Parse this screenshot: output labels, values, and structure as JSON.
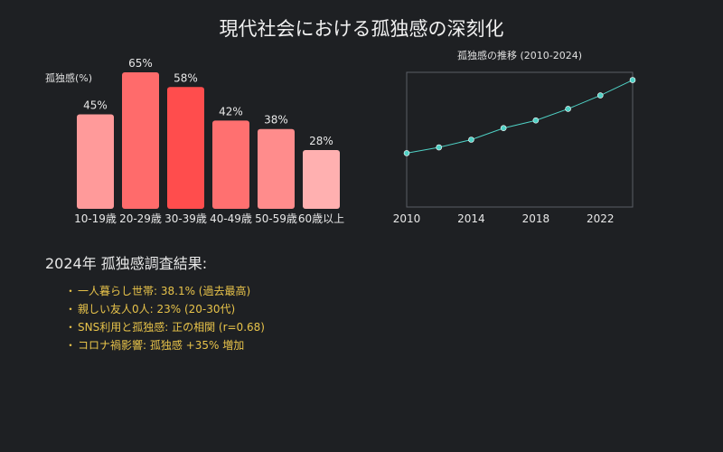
{
  "title": "現代社会における孤独感の深刻化",
  "chart_data": [
    {
      "type": "bar",
      "ylabel": "孤独感(%)",
      "categories": [
        "10-19歳",
        "20-29歳",
        "30-39歳",
        "40-49歳",
        "50-59歳",
        "60歳以上"
      ],
      "values": [
        45,
        65,
        58,
        42,
        38,
        28
      ],
      "value_labels": [
        "45%",
        "65%",
        "58%",
        "42%",
        "38%",
        "28%"
      ],
      "colors": [
        "#ff9a9a",
        "#ff6b6b",
        "#ff4d4d",
        "#ff7070",
        "#ff8c8c",
        "#ffb0b0"
      ],
      "ylim": [
        0,
        70
      ]
    },
    {
      "type": "line",
      "title": "孤独感の推移 (2010-2024)",
      "x": [
        2010,
        2012,
        2014,
        2016,
        2018,
        2020,
        2022,
        2024
      ],
      "y": [
        28,
        31,
        35,
        41,
        45,
        51,
        58,
        66
      ],
      "xlim": [
        2010,
        2024
      ],
      "ylim": [
        0,
        70
      ],
      "xticks": [
        2010,
        2014,
        2018,
        2022
      ],
      "xtick_labels": [
        "2010",
        "2014",
        "2018",
        "2022"
      ],
      "line_color": "#4fd1c5"
    }
  ],
  "findings": {
    "title": "2024年 孤独感調査結果:",
    "bullet": "・",
    "items": [
      "一人暮らし世帯: 38.1% (過去最高)",
      "親しい友人0人: 23% (20-30代)",
      "SNS利用と孤独感: 正の相関 (r=0.68)",
      "コロナ禍影響: 孤独感 +35% 増加"
    ]
  }
}
